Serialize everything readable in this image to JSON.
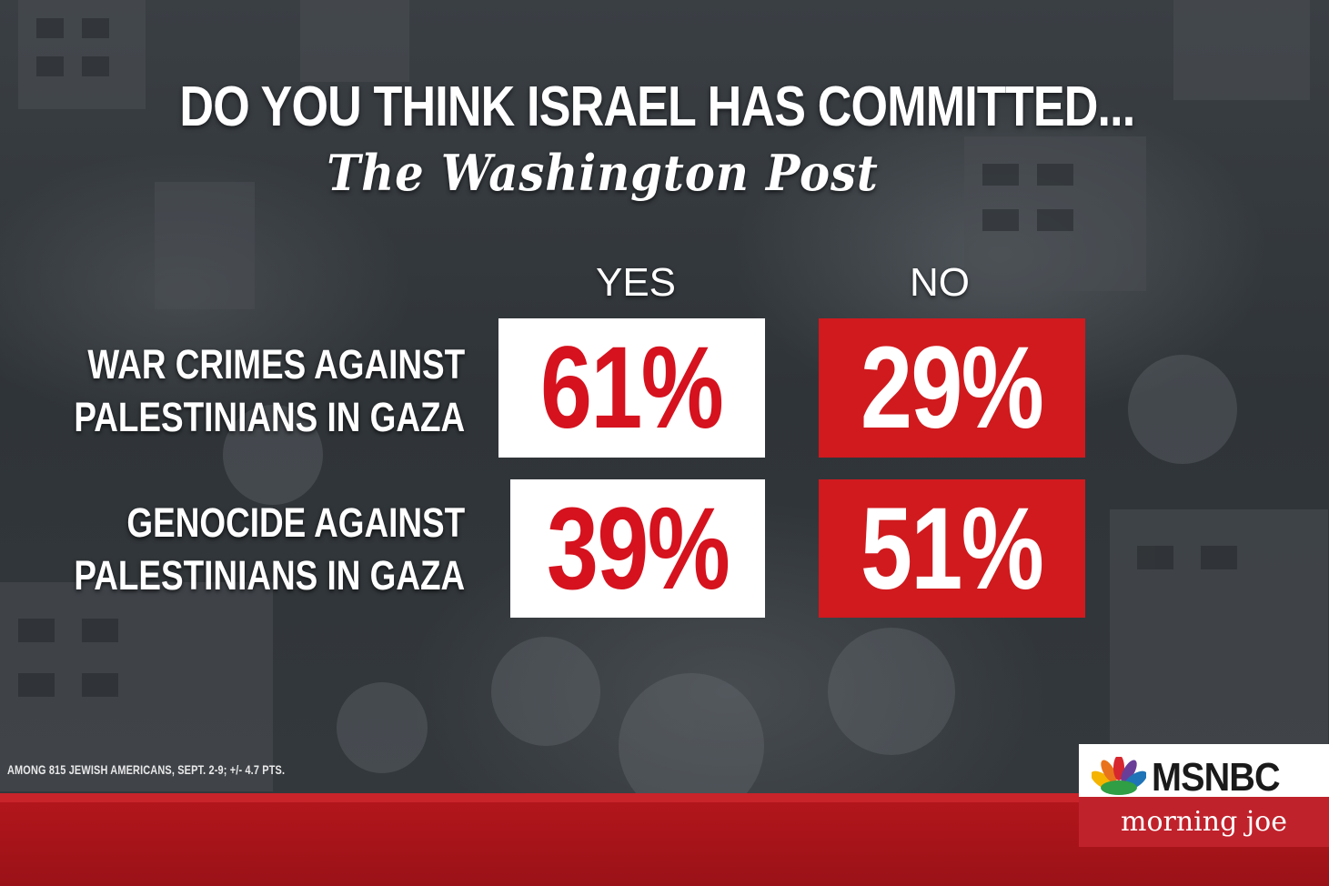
{
  "title": "DO YOU THINK ISRAEL HAS COMMITTED...",
  "source_logo": "The Washington Post",
  "chart_data": {
    "type": "table",
    "columns": [
      "YES",
      "NO"
    ],
    "rows": [
      {
        "label_lines": [
          "WAR CRIMES AGAINST",
          "PALESTINIANS IN GAZA"
        ],
        "values": [
          "61%",
          "29%"
        ]
      },
      {
        "label_lines": [
          "GENOCIDE AGAINST",
          "PALESTINIANS IN GAZA"
        ],
        "values": [
          "39%",
          "51%"
        ]
      }
    ],
    "colors": {
      "yes_bg": "#ffffff",
      "yes_text": "#d5121e",
      "no_bg": "#d01a1e",
      "no_text": "#ffffff"
    }
  },
  "footnote": "AMONG 815 JEWISH AMERICANS, SEPT. 2-9; +/- 4.7 PTS.",
  "branding": {
    "network": "MSNBC",
    "show": "morning joe",
    "accent": "#c0222b"
  }
}
